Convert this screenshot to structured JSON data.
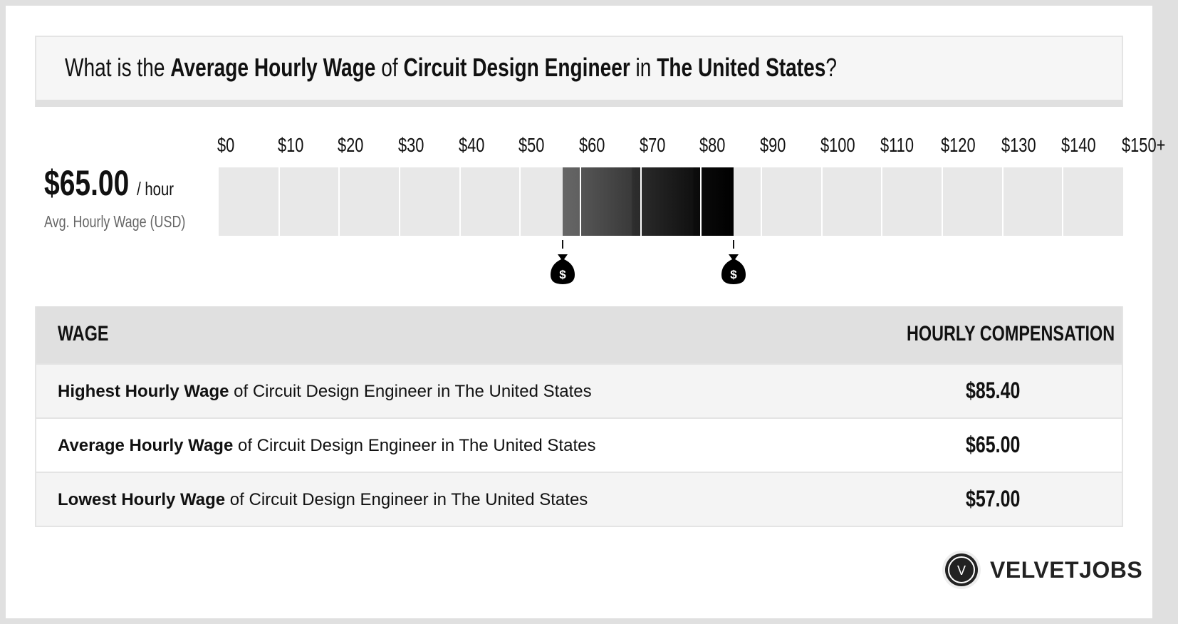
{
  "title": {
    "prefix": "What is the ",
    "metric": "Average Hourly Wage",
    "of": " of ",
    "job": "Circuit Design Engineer",
    "in": " in ",
    "location": "The United States",
    "suffix": "?"
  },
  "summary": {
    "value": "$65.00",
    "unit": "/ hour",
    "label": "Avg. Hourly Wage (USD)"
  },
  "scale": {
    "ticks": [
      "$0",
      "$10",
      "$20",
      "$30",
      "$40",
      "$50",
      "$60",
      "$70",
      "$80",
      "$90",
      "$100",
      "$110",
      "$120",
      "$130",
      "$140",
      "$150+"
    ],
    "range_low": 57.0,
    "range_high": 85.4,
    "max": 150,
    "marker_icon": "money-bag-icon"
  },
  "table": {
    "headers": {
      "wage": "WAGE",
      "comp": "HOURLY COMPENSATION"
    },
    "rows": [
      {
        "bold": "Highest Hourly Wage",
        "rest": " of Circuit Design Engineer in The United States",
        "value": "$85.40"
      },
      {
        "bold": "Average Hourly Wage",
        "rest": " of Circuit Design Engineer in The United States",
        "value": "$65.00"
      },
      {
        "bold": "Lowest Hourly Wage",
        "rest": " of Circuit Design Engineer in The United States",
        "value": "$57.00"
      }
    ]
  },
  "logo": {
    "letter": "V",
    "name": "VELVETJOBS"
  }
}
